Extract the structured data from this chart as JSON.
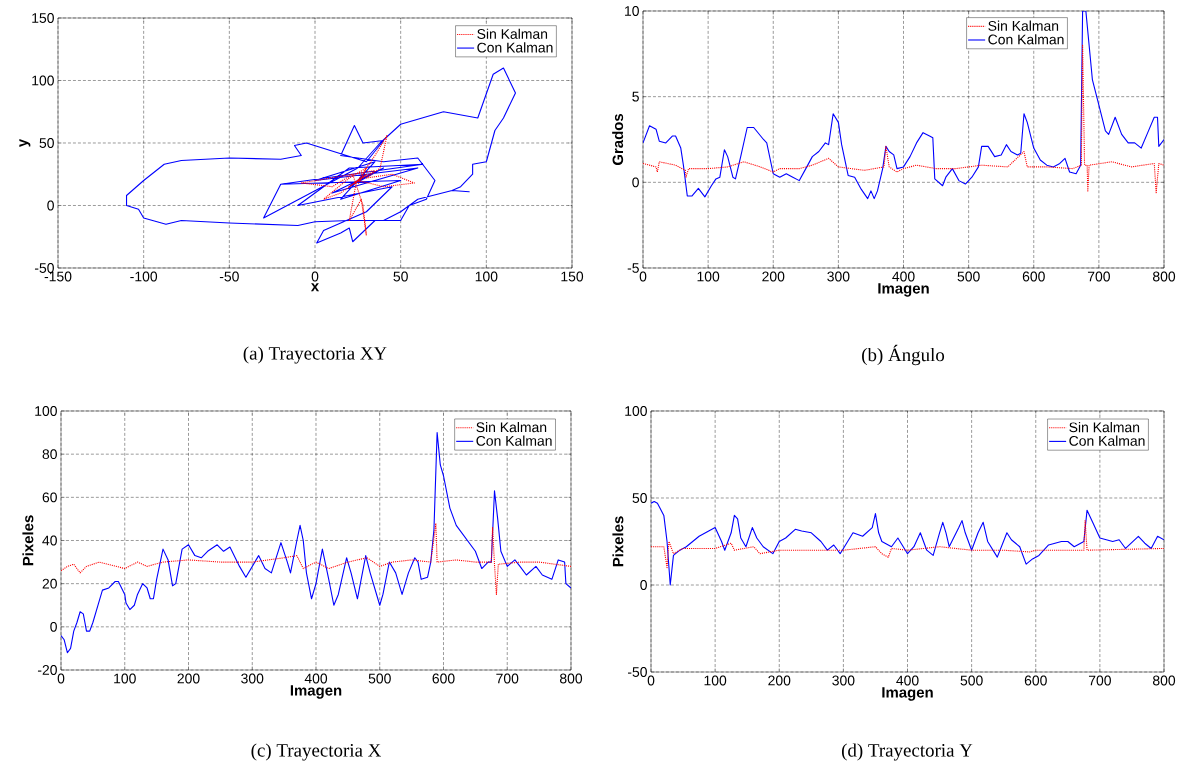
{
  "chart_data": [
    {
      "type": "line",
      "title": "(a) Trayectoria XY",
      "xlabel": "x",
      "ylabel": "y",
      "xlim": [
        -150,
        150
      ],
      "ylim": [
        -50,
        150
      ],
      "xticks": [
        -150,
        -100,
        -50,
        0,
        50,
        100,
        150
      ],
      "yticks": [
        -50,
        0,
        50,
        100,
        150
      ],
      "grid": true,
      "legend": "top right",
      "marker": "none",
      "series": [
        {
          "name": "Sin Kalman",
          "color": "#ff0000",
          "line_style": "dotted",
          "x": [
            25,
            30,
            20,
            35,
            -8,
            10,
            22,
            28,
            30,
            27,
            20,
            24,
            35,
            42,
            38,
            30,
            45,
            58,
            40,
            25,
            15,
            5,
            20,
            30,
            25
          ],
          "values": [
            20,
            25,
            15,
            28,
            18,
            15,
            25,
            0,
            -24,
            5,
            -12,
            18,
            40,
            56,
            30,
            22,
            25,
            18,
            15,
            20,
            10,
            5,
            22,
            30,
            17
          ]
        },
        {
          "name": "Con Kalman",
          "color": "#0000ff",
          "line_style": "solid",
          "x": [
            25,
            30,
            20,
            40,
            10,
            60,
            0,
            35,
            15,
            50,
            -20,
            63,
            20,
            -10,
            45,
            30,
            5,
            1,
            15,
            20,
            22,
            35,
            50,
            55,
            65,
            70,
            60,
            40,
            15,
            20,
            23,
            28,
            40,
            30,
            -5,
            -12,
            -8,
            -20,
            -50,
            -78,
            -88,
            -100,
            -110,
            -110,
            -103,
            -100,
            -87,
            -78,
            -50,
            -10,
            0,
            20,
            40,
            50,
            60,
            80,
            90,
            80,
            85,
            92,
            92,
            100,
            105,
            110,
            117,
            110,
            104,
            95,
            75,
            50,
            38,
            25,
            -30,
            -20
          ],
          "values": [
            20,
            25,
            15,
            30,
            10,
            30,
            20,
            35,
            5,
            20,
            17,
            33,
            30,
            0,
            15,
            -5,
            -20,
            -30,
            -22,
            -18,
            -29,
            -12,
            -12,
            0,
            5,
            20,
            38,
            35,
            40,
            55,
            64,
            50,
            52,
            35,
            50,
            48,
            40,
            37,
            38,
            36,
            33,
            20,
            8,
            0,
            -3,
            -10,
            -15,
            -12,
            -14,
            -16,
            -13,
            -12,
            -12,
            -5,
            5,
            12,
            11,
            12,
            15,
            25,
            33,
            35,
            60,
            70,
            90,
            110,
            105,
            70,
            75,
            65,
            50,
            30,
            -10,
            17
          ]
        }
      ]
    },
    {
      "type": "line",
      "title": "(b) Ángulo",
      "xlabel": "Imagen",
      "ylabel": "Grados",
      "xlim": [
        0,
        800
      ],
      "ylim": [
        -5,
        10
      ],
      "xticks": [
        0,
        100,
        200,
        300,
        400,
        500,
        600,
        700,
        800
      ],
      "yticks": [
        -5,
        0,
        5,
        10
      ],
      "grid": true,
      "legend": "top right",
      "marker": "none",
      "series": [
        {
          "name": "Sin Kalman",
          "color": "#ff0000",
          "line_style": "dotted",
          "x": [
            0,
            20,
            22,
            25,
            50,
            65,
            66,
            70,
            100,
            130,
            155,
            180,
            200,
            210,
            240,
            260,
            285,
            300,
            340,
            370,
            373,
            378,
            390,
            400,
            420,
            450,
            480,
            500,
            520,
            560,
            585,
            590,
            620,
            660,
            673,
            675,
            678,
            682,
            683,
            685,
            720,
            750,
            785,
            788,
            792,
            800
          ],
          "values": [
            1.1,
            0.9,
            0.6,
            1.2,
            1.0,
            0.7,
            0.3,
            0.8,
            0.8,
            0.9,
            1.2,
            0.9,
            0.6,
            0.8,
            0.8,
            1.0,
            1.4,
            0.9,
            0.7,
            0.9,
            2.1,
            0.9,
            0.6,
            0.8,
            1.0,
            0.8,
            0.8,
            0.9,
            1.0,
            0.9,
            1.8,
            0.9,
            0.9,
            0.8,
            1.0,
            8,
            1.0,
            1.0,
            -0.5,
            1.0,
            1.2,
            0.9,
            1.1,
            -0.6,
            1.1,
            1.0
          ]
        },
        {
          "name": "Con Kalman",
          "color": "#0000ff",
          "line_style": "solid",
          "x": [
            0,
            10,
            20,
            25,
            35,
            45,
            50,
            58,
            62,
            68,
            75,
            85,
            95,
            105,
            112,
            118,
            125,
            130,
            138,
            142,
            150,
            160,
            170,
            185,
            190,
            200,
            210,
            220,
            230,
            240,
            250,
            260,
            270,
            280,
            285,
            292,
            300,
            305,
            315,
            325,
            335,
            345,
            350,
            355,
            360,
            368,
            373,
            378,
            385,
            390,
            400,
            410,
            420,
            430,
            440,
            445,
            448,
            460,
            465,
            475,
            485,
            495,
            505,
            515,
            520,
            530,
            540,
            550,
            558,
            565,
            575,
            580,
            585,
            590,
            600,
            610,
            620,
            630,
            640,
            648,
            655,
            665,
            672,
            675,
            680,
            685,
            690,
            700,
            710,
            715,
            725,
            735,
            745,
            755,
            765,
            775,
            785,
            790,
            792,
            800
          ],
          "values": [
            2.3,
            3.3,
            3.1,
            2.4,
            2.3,
            2.7,
            2.7,
            2.0,
            1.0,
            -0.8,
            -0.8,
            -0.35,
            -0.85,
            -0.2,
            0.2,
            0.3,
            1.9,
            1.5,
            0.3,
            0.2,
            1.5,
            3.2,
            3.2,
            2.5,
            2.3,
            0.5,
            0.3,
            0.5,
            0.3,
            0.1,
            0.8,
            1.5,
            1.8,
            2.3,
            2.2,
            4.0,
            3.5,
            2.2,
            0.4,
            0.3,
            -0.4,
            -0.95,
            -0.5,
            -0.95,
            -0.5,
            0.8,
            2.1,
            1.8,
            1.6,
            0.8,
            0.9,
            1.5,
            2.3,
            2.9,
            2.7,
            2.6,
            0.2,
            -0.2,
            0.3,
            0.8,
            0.1,
            -0.1,
            0.3,
            0.9,
            2.1,
            2.1,
            1.5,
            1.6,
            2.2,
            1.8,
            1.6,
            1.7,
            4.0,
            3.5,
            2.0,
            1.3,
            1.0,
            0.9,
            1.1,
            1.4,
            0.6,
            0.5,
            1.0,
            10,
            10,
            8,
            6,
            4.5,
            3.0,
            2.8,
            3.8,
            2.8,
            2.3,
            2.3,
            2.0,
            2.9,
            3.8,
            3.8,
            2.1,
            2.5
          ]
        }
      ]
    },
    {
      "type": "line",
      "title": "(c) Trayectoria X",
      "xlabel": "Imagen",
      "ylabel": "Pixeles",
      "xlim": [
        0,
        800
      ],
      "ylim": [
        -20,
        100
      ],
      "xticks": [
        0,
        100,
        200,
        300,
        400,
        500,
        600,
        700,
        800
      ],
      "yticks": [
        -20,
        0,
        20,
        40,
        60,
        80,
        100
      ],
      "grid": true,
      "legend": "top right",
      "marker": "none",
      "series": [
        {
          "name": "Sin Kalman",
          "color": "#ff0000",
          "line_style": "dotted",
          "x": [
            0,
            10,
            20,
            30,
            40,
            60,
            100,
            120,
            135,
            160,
            200,
            250,
            300,
            350,
            370,
            380,
            400,
            420,
            450,
            480,
            500,
            520,
            550,
            580,
            588,
            590,
            620,
            650,
            675,
            677,
            680,
            683,
            686,
            720,
            750,
            800
          ],
          "values": [
            26,
            28,
            29,
            25,
            28,
            30,
            27,
            30,
            28,
            30,
            31,
            30,
            30,
            32,
            33,
            27,
            30,
            27,
            30,
            32,
            28,
            30,
            31,
            30,
            48,
            30,
            31,
            30,
            30,
            46,
            29,
            15,
            29,
            30,
            30,
            28
          ]
        },
        {
          "name": "Con Kalman",
          "color": "#0000ff",
          "line_style": "solid",
          "x": [
            0,
            5,
            10,
            15,
            20,
            25,
            30,
            35,
            40,
            45,
            50,
            60,
            65,
            75,
            85,
            90,
            100,
            102,
            108,
            115,
            120,
            128,
            135,
            140,
            145,
            150,
            160,
            168,
            175,
            180,
            190,
            200,
            210,
            220,
            230,
            245,
            255,
            265,
            280,
            290,
            300,
            310,
            320,
            330,
            345,
            355,
            360,
            370,
            375,
            380,
            385,
            393,
            400,
            410,
            420,
            428,
            435,
            448,
            455,
            465,
            478,
            485,
            500,
            505,
            515,
            525,
            535,
            545,
            555,
            560,
            565,
            575,
            580,
            585,
            590,
            595,
            600,
            610,
            620,
            635,
            650,
            660,
            670,
            675,
            680,
            685,
            690,
            700,
            712,
            720,
            730,
            745,
            755,
            770,
            780,
            790,
            792,
            800
          ],
          "values": [
            -4,
            -6,
            -12,
            -10,
            -2,
            2,
            7,
            6,
            -2,
            -2,
            2,
            12,
            17,
            18,
            21,
            21,
            15,
            11,
            8,
            10,
            15,
            20,
            18,
            13,
            13,
            22,
            36,
            31,
            19,
            20,
            36,
            38,
            33,
            32,
            35,
            38,
            35,
            37,
            28,
            23,
            28,
            33,
            27,
            25,
            39,
            30,
            25,
            40,
            47,
            40,
            25,
            13,
            20,
            36,
            22,
            10,
            15,
            32,
            25,
            13,
            33,
            25,
            10,
            15,
            30,
            25,
            15,
            25,
            32,
            30,
            22,
            23,
            30,
            45,
            90,
            75,
            70,
            55,
            47,
            41,
            35,
            27,
            30,
            30,
            63,
            50,
            35,
            28,
            31,
            28,
            24,
            28,
            24,
            22,
            31,
            30,
            20,
            18
          ]
        }
      ]
    },
    {
      "type": "line",
      "title": "(d) Trayectoria Y",
      "xlabel": "Imagen",
      "ylabel": "Pixeles",
      "xlim": [
        0,
        800
      ],
      "ylim": [
        -50,
        100
      ],
      "xticks": [
        0,
        100,
        200,
        300,
        400,
        500,
        600,
        700,
        800
      ],
      "yticks": [
        -50,
        0,
        50,
        100
      ],
      "grid": true,
      "legend": "top right",
      "marker": "none",
      "series": [
        {
          "name": "Sin Kalman",
          "color": "#ff0000",
          "line_style": "dotted",
          "x": [
            0,
            20,
            25,
            28,
            35,
            50,
            100,
            125,
            130,
            160,
            170,
            200,
            300,
            350,
            360,
            370,
            375,
            400,
            450,
            500,
            550,
            590,
            600,
            675,
            677,
            680,
            800
          ],
          "values": [
            22,
            22,
            10,
            25,
            18,
            21,
            21,
            24,
            20,
            22,
            18,
            20,
            20,
            22,
            18,
            16,
            21,
            20,
            22,
            20,
            20,
            19,
            20,
            20,
            37,
            20,
            21
          ]
        },
        {
          "name": "Con Kalman",
          "color": "#0000ff",
          "line_style": "solid",
          "x": [
            0,
            5,
            10,
            20,
            25,
            30,
            35,
            45,
            55,
            65,
            75,
            90,
            100,
            110,
            115,
            125,
            130,
            135,
            140,
            148,
            158,
            165,
            175,
            190,
            200,
            210,
            225,
            235,
            250,
            265,
            275,
            285,
            295,
            305,
            315,
            330,
            345,
            350,
            355,
            360,
            375,
            385,
            400,
            410,
            420,
            430,
            440,
            450,
            455,
            460,
            465,
            480,
            485,
            490,
            500,
            510,
            518,
            525,
            540,
            555,
            562,
            575,
            585,
            595,
            605,
            620,
            640,
            650,
            660,
            670,
            675,
            680,
            690,
            700,
            720,
            730,
            740,
            760,
            770,
            780,
            790,
            800
          ],
          "values": [
            47,
            48,
            47,
            40,
            25,
            0,
            17,
            20,
            22,
            25,
            28,
            31,
            33,
            25,
            20,
            30,
            40,
            38,
            27,
            22,
            33,
            27,
            22,
            18,
            25,
            27,
            32,
            31,
            30,
            25,
            20,
            23,
            18,
            24,
            30,
            28,
            33,
            41,
            30,
            25,
            22,
            27,
            18,
            22,
            30,
            20,
            17,
            30,
            36,
            30,
            22,
            33,
            37,
            30,
            20,
            30,
            36,
            25,
            16,
            30,
            26,
            22,
            12,
            15,
            17,
            23,
            25,
            25,
            22,
            24,
            25,
            43,
            35,
            27,
            25,
            26,
            21,
            28,
            24,
            21,
            28,
            26
          ]
        }
      ]
    }
  ]
}
